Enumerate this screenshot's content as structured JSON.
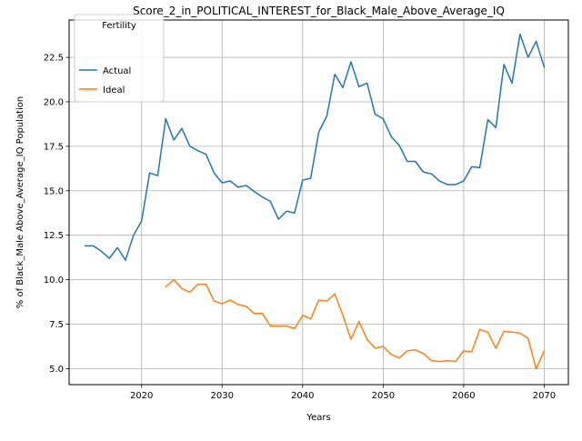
{
  "chart_data": {
    "type": "line",
    "title": "Score_2_in_POLITICAL_INTEREST_for_Black_Male_Above_Average_IQ",
    "xlabel": "Years",
    "ylabel": "% of Black_Male Above_Average_IQ Population",
    "xlim": [
      2011,
      2073
    ],
    "ylim": [
      4.1,
      24.6
    ],
    "xticks": [
      2020,
      2030,
      2040,
      2050,
      2060,
      2070
    ],
    "yticks": [
      5.0,
      7.5,
      10.0,
      12.5,
      15.0,
      17.5,
      20.0,
      22.5
    ],
    "xtick_labels": [
      "2020",
      "2030",
      "2040",
      "2050",
      "2060",
      "2070"
    ],
    "ytick_labels": [
      "5.0",
      "7.5",
      "10.0",
      "12.5",
      "15.0",
      "17.5",
      "20.0",
      "22.5"
    ],
    "grid": true,
    "legend": {
      "title": "Fertility",
      "position": "upper-left"
    },
    "series": [
      {
        "name": "Actual",
        "color": "#1f77b4",
        "x": [
          2013,
          2014,
          2015,
          2016,
          2017,
          2018,
          2019,
          2020,
          2021,
          2022,
          2023,
          2024,
          2025,
          2026,
          2027,
          2028,
          2029,
          2030,
          2031,
          2032,
          2033,
          2034,
          2035,
          2036,
          2037,
          2038,
          2039,
          2040,
          2041,
          2042,
          2043,
          2044,
          2045,
          2046,
          2047,
          2048,
          2049,
          2050,
          2051,
          2052,
          2053,
          2054,
          2055,
          2056,
          2057,
          2058,
          2059,
          2060,
          2061,
          2062,
          2063,
          2064,
          2065,
          2066,
          2067,
          2068,
          2069,
          2070
        ],
        "y": [
          11.9,
          11.9,
          11.6,
          11.2,
          11.8,
          11.1,
          12.5,
          13.3,
          16.0,
          15.85,
          19.05,
          17.85,
          18.5,
          17.5,
          17.25,
          17.05,
          16.0,
          15.45,
          15.55,
          15.2,
          15.3,
          14.95,
          14.65,
          14.4,
          13.4,
          13.85,
          13.75,
          15.6,
          15.7,
          18.3,
          19.2,
          21.55,
          20.8,
          22.25,
          20.85,
          21.05,
          19.3,
          19.05,
          18.05,
          17.55,
          16.65,
          16.65,
          16.05,
          15.95,
          15.55,
          15.35,
          15.35,
          15.55,
          16.35,
          16.3,
          19.0,
          18.55,
          22.1,
          21.05,
          23.8,
          22.5,
          23.4,
          21.95
        ]
      },
      {
        "name": "Ideal",
        "color": "#ff7f0e",
        "x": [
          2023,
          2024,
          2025,
          2026,
          2027,
          2028,
          2029,
          2030,
          2031,
          2032,
          2033,
          2034,
          2035,
          2036,
          2037,
          2038,
          2039,
          2040,
          2041,
          2042,
          2043,
          2044,
          2045,
          2046,
          2047,
          2048,
          2049,
          2050,
          2051,
          2052,
          2053,
          2054,
          2055,
          2056,
          2057,
          2058,
          2059,
          2060,
          2061,
          2062,
          2063,
          2064,
          2065,
          2066,
          2067,
          2068,
          2069,
          2070
        ],
        "y": [
          9.6,
          10.0,
          9.5,
          9.3,
          9.75,
          9.75,
          8.8,
          8.65,
          8.85,
          8.6,
          8.5,
          8.1,
          8.1,
          7.4,
          7.4,
          7.4,
          7.25,
          8.0,
          7.8,
          8.85,
          8.8,
          9.2,
          8.0,
          6.65,
          7.65,
          6.65,
          6.15,
          6.25,
          5.8,
          5.6,
          6.0,
          6.05,
          5.85,
          5.45,
          5.4,
          5.45,
          5.4,
          6.0,
          5.95,
          7.2,
          7.05,
          6.15,
          7.1,
          7.05,
          7.0,
          6.7,
          5.0,
          6.0
        ]
      }
    ]
  }
}
